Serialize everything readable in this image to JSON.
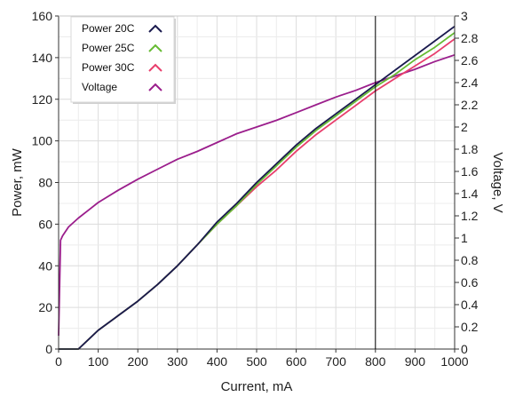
{
  "chart_data": {
    "type": "line",
    "title": "",
    "xlabel": "Current, mA",
    "ylabel": "Power, mW",
    "y2label": "Voltage, V",
    "xlim": [
      0,
      1000
    ],
    "ylim": [
      0,
      160
    ],
    "y2lim": [
      0,
      3
    ],
    "xticks": [
      0,
      100,
      200,
      300,
      400,
      500,
      600,
      700,
      800,
      900,
      1000
    ],
    "yticks": [
      0,
      20,
      40,
      60,
      80,
      100,
      120,
      140,
      160
    ],
    "y2ticks": [
      0,
      0.2,
      0.4,
      0.6,
      0.8,
      1,
      1.2,
      1.4,
      1.6,
      1.8,
      2,
      2.2,
      2.4,
      2.6,
      2.8,
      3
    ],
    "grid": true,
    "legend_position": "top-left",
    "cursor_x": 800,
    "series": [
      {
        "name": "Power 20C",
        "axis": "left",
        "color": "#1a1a4e",
        "x": [
          0,
          50,
          100,
          150,
          200,
          250,
          300,
          350,
          400,
          450,
          500,
          550,
          600,
          650,
          700,
          750,
          800,
          850,
          900,
          950,
          1000
        ],
        "y": [
          0,
          0,
          9,
          16,
          23,
          31,
          40,
          50,
          61,
          70,
          80,
          89,
          98,
          106,
          113,
          120,
          127,
          134,
          141,
          148,
          155
        ]
      },
      {
        "name": "Power 25C",
        "axis": "left",
        "color": "#66bb33",
        "x": [
          0,
          50,
          100,
          150,
          200,
          250,
          300,
          350,
          400,
          450,
          500,
          550,
          600,
          650,
          700,
          750,
          800,
          850,
          900,
          950,
          1000
        ],
        "y": [
          0,
          0,
          9,
          16,
          23,
          31,
          40,
          50,
          60,
          69,
          79,
          88,
          97,
          105,
          112,
          119,
          126,
          132,
          139,
          145,
          152
        ]
      },
      {
        "name": "Power 30C",
        "axis": "left",
        "color": "#e83e6c",
        "x": [
          0,
          50,
          100,
          150,
          200,
          250,
          300,
          350,
          400,
          450,
          500,
          550,
          600,
          650,
          700,
          750,
          800,
          850,
          900,
          950,
          1000
        ],
        "y": [
          0,
          0,
          9,
          16,
          23,
          31,
          40,
          50,
          60,
          69,
          78,
          86,
          95,
          103,
          110,
          117,
          124,
          130,
          136,
          142,
          149
        ]
      },
      {
        "name": "Voltage",
        "axis": "right",
        "color": "#9b1e8c",
        "x": [
          0,
          5,
          10,
          25,
          50,
          75,
          100,
          150,
          200,
          250,
          300,
          350,
          400,
          450,
          500,
          550,
          600,
          650,
          700,
          750,
          800,
          850,
          900,
          950,
          1000
        ],
        "y": [
          0.12,
          0.98,
          1.02,
          1.1,
          1.18,
          1.25,
          1.32,
          1.43,
          1.53,
          1.62,
          1.71,
          1.78,
          1.86,
          1.94,
          2.0,
          2.06,
          2.13,
          2.2,
          2.27,
          2.33,
          2.4,
          2.46,
          2.52,
          2.59,
          2.65
        ]
      }
    ]
  }
}
